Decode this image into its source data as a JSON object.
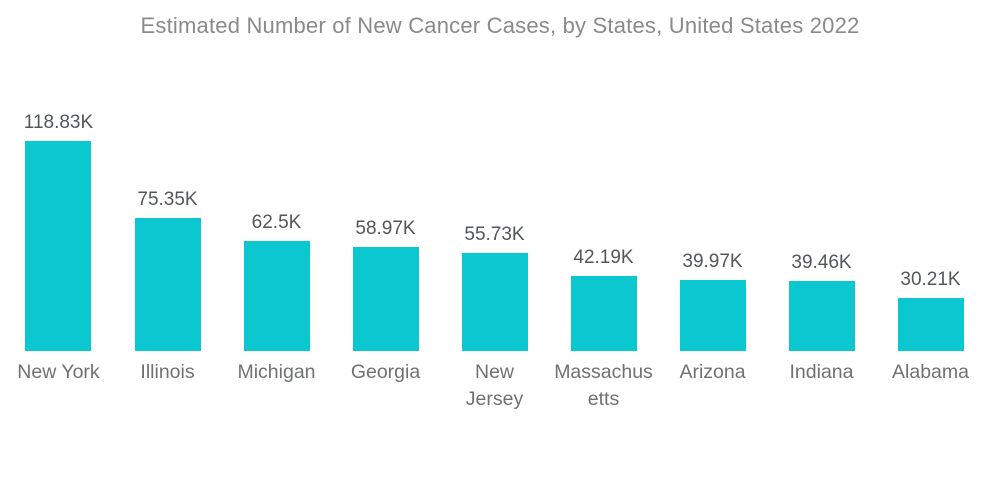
{
  "chart_data": {
    "type": "bar",
    "title": "Estimated Number of New Cancer Cases, by States, United States 2022",
    "categories": [
      "New York",
      "Illinois",
      "Michigan",
      "Georgia",
      "New Jersey",
      "Massachusetts",
      "Arizona",
      "Indiana",
      "Alabama"
    ],
    "values": [
      118.83,
      75.35,
      62.5,
      58.97,
      55.73,
      42.19,
      39.97,
      39.46,
      30.21
    ],
    "value_labels": [
      "118.83K",
      "75.35K",
      "62.5K",
      "58.97K",
      "55.73K",
      "42.19K",
      "39.97K",
      "39.46K",
      "30.21K"
    ],
    "category_lines": [
      [
        "New York"
      ],
      [
        "Illinois"
      ],
      [
        "Michigan"
      ],
      [
        "Georgia"
      ],
      [
        "New",
        "Jersey"
      ],
      [
        "Massachus",
        "etts"
      ],
      [
        "Arizona"
      ],
      [
        "Indiana"
      ],
      [
        "Alabama"
      ]
    ],
    "unit": "K",
    "xlabel": "",
    "ylabel": "",
    "ylim": [
      0,
      118.83
    ],
    "grid": false,
    "legend": false,
    "axes_visible": false,
    "bar_color": "#0bc8d0",
    "title_color": "#8a8a8a",
    "value_label_color": "#54575a",
    "category_label_color": "#6f7173",
    "background_color": "#ffffff"
  }
}
